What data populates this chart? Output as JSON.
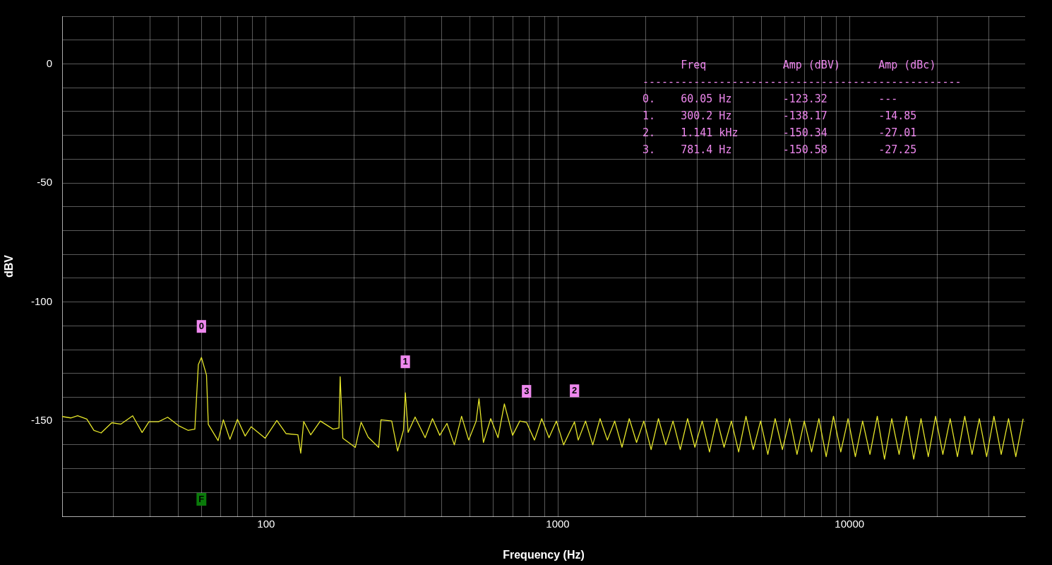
{
  "chart_data": {
    "type": "line",
    "xlabel": "Frequency (Hz)",
    "ylabel": "dBV",
    "log": "x",
    "grid": true,
    "xlim": [
      20,
      40000
    ],
    "xticks": [
      {
        "value": 20,
        "label": null
      },
      {
        "value": 30,
        "label": null
      },
      {
        "value": 40,
        "label": null
      },
      {
        "value": 50,
        "label": null
      },
      {
        "value": 60,
        "label": null
      },
      {
        "value": 70,
        "label": null
      },
      {
        "value": 80,
        "label": null
      },
      {
        "value": 90,
        "label": null
      },
      100,
      {
        "value": 200,
        "label": null
      },
      {
        "value": 300,
        "label": null
      },
      {
        "value": 400,
        "label": null
      },
      {
        "value": 500,
        "label": null
      },
      {
        "value": 600,
        "label": null
      },
      {
        "value": 700,
        "label": null
      },
      {
        "value": 800,
        "label": null
      },
      {
        "value": 900,
        "label": null
      },
      1000,
      {
        "value": 2000,
        "label": null
      },
      {
        "value": 3000,
        "label": null
      },
      {
        "value": 4000,
        "label": null
      },
      {
        "value": 5000,
        "label": null
      },
      {
        "value": 6000,
        "label": null
      },
      {
        "value": 7000,
        "label": null
      },
      {
        "value": 8000,
        "label": null
      },
      {
        "value": 9000,
        "label": null
      },
      10000,
      {
        "value": 20000,
        "label": null
      },
      {
        "value": 30000,
        "label": null
      }
    ],
    "ylim": [
      -190,
      20
    ],
    "yticks": [
      {
        "value": -190,
        "label": null
      },
      {
        "value": -180,
        "label": null
      },
      {
        "value": -170,
        "label": null
      },
      {
        "value": -160,
        "label": null
      },
      -150,
      {
        "value": -140,
        "label": null
      },
      {
        "value": -130,
        "label": null
      },
      {
        "value": -120,
        "label": null
      },
      {
        "value": -110,
        "label": null
      },
      -100,
      {
        "value": -90,
        "label": null
      },
      {
        "value": -80,
        "label": null
      },
      {
        "value": -70,
        "label": null
      },
      {
        "value": -60,
        "label": null
      },
      -50,
      {
        "value": -40,
        "label": null
      },
      {
        "value": -30,
        "label": null
      },
      {
        "value": -20,
        "label": null
      },
      {
        "value": -10,
        "label": null
      },
      0,
      {
        "value": 10,
        "label": null
      },
      {
        "value": 20,
        "label": null
      }
    ],
    "series": [
      {
        "color": "#e6e62a",
        "x": [
          20,
          21.4,
          22.6,
          24.3,
          25.7,
          27.2,
          29.6,
          31.8,
          34.9,
          37.6,
          39.7,
          42.8,
          46,
          50.1,
          54,
          57,
          58.6,
          60.05,
          62.5,
          63.4,
          68.5,
          71.4,
          75.2,
          79.8,
          84.8,
          88.9,
          99.3,
          108.9,
          117.2,
          128.6,
          131.5,
          134.6,
          142.3,
          153.5,
          169.8,
          177.8,
          179.5,
          183.3,
          202.2,
          211.8,
          223.9,
          243.3,
          247.7,
          269.6,
          282.5,
          295.8,
          300.2,
          306.9,
          324.3,
          351,
          372,
          394,
          417,
          442,
          468,
          495,
          525,
          537,
          556,
          589,
          624,
          656,
          700,
          741,
          781.4,
          832,
          881,
          933,
          989,
          1047,
          1141,
          1175,
          1245,
          1318,
          1396,
          1479,
          1567,
          1660,
          1758,
          1862,
          1972,
          2089,
          2213,
          2344,
          2483,
          2630,
          2786,
          2951,
          3126,
          3311,
          3508,
          3715,
          3936,
          4169,
          4416,
          4677,
          4955,
          5248,
          5559,
          5888,
          6237,
          6607,
          6998,
          7413,
          7852,
          8318,
          8810,
          9333,
          9886,
          10470,
          11090,
          11750,
          12450,
          13180,
          13960,
          14790,
          15670,
          16600,
          17580,
          18620,
          19720,
          20890,
          22130,
          23440,
          24830,
          26300,
          27860,
          29510,
          31260,
          33110,
          35080,
          37150,
          39360
        ],
        "values": [
          -148.1,
          -148.7,
          -147.8,
          -149.2,
          -153.9,
          -155,
          -150.7,
          -151.3,
          -147.8,
          -154.8,
          -150.3,
          -150.3,
          -148.4,
          -151.9,
          -153.9,
          -153.4,
          -126.3,
          -123.32,
          -130.7,
          -151.4,
          -158.2,
          -149.5,
          -157.7,
          -149.3,
          -156.3,
          -152.4,
          -157.2,
          -149.8,
          -155.3,
          -155.8,
          -163.5,
          -150.2,
          -155.8,
          -150,
          -153.4,
          -152.9,
          -131.4,
          -157.2,
          -161.1,
          -150.5,
          -156.8,
          -161.1,
          -149.5,
          -150,
          -162.6,
          -153.9,
          -138.17,
          -154.8,
          -148.3,
          -157,
          -149,
          -156,
          -151,
          -160,
          -148,
          -158,
          -150,
          -140.6,
          -159,
          -149,
          -157,
          -142.8,
          -156,
          -150,
          -150.58,
          -158,
          -149,
          -157,
          -150,
          -160,
          -150.34,
          -158,
          -150,
          -160,
          -149,
          -158,
          -150,
          -161,
          -149,
          -159,
          -150,
          -162,
          -149,
          -160,
          -150,
          -162,
          -149,
          -161,
          -150,
          -163,
          -149,
          -161,
          -150,
          -163,
          -148,
          -162,
          -150,
          -164,
          -149,
          -162,
          -149,
          -164,
          -150,
          -163,
          -149,
          -165,
          -148,
          -163,
          -149,
          -165,
          -150,
          -164,
          -148,
          -166,
          -149,
          -164,
          -148,
          -166,
          -149,
          -165,
          -148,
          -164,
          -149,
          -165,
          -148,
          -164,
          -149,
          -165,
          -148,
          -164,
          -149,
          -165,
          -149
        ]
      }
    ],
    "annotations": [
      "      Freq            Amp (dBV)      Amp (dBc)",
      "--------------------------------------------------",
      "0.    60.05 Hz        -123.32        ---",
      "1.    300.2 Hz        -138.17        -14.85",
      "2.    1.141 kHz       -150.34        -27.01",
      "3.    781.4 Hz        -150.58        -27.25",
      {
        "text": "0",
        "x": 60.05,
        "y": -123.32
      },
      {
        "text": "1",
        "x": 300.2,
        "y": -138.17
      },
      {
        "text": "2",
        "x": 1141,
        "y": -150.34
      },
      {
        "text": "3",
        "x": 781.4,
        "y": -150.58
      },
      {
        "text": "F",
        "x": 60.05
      }
    ]
  }
}
